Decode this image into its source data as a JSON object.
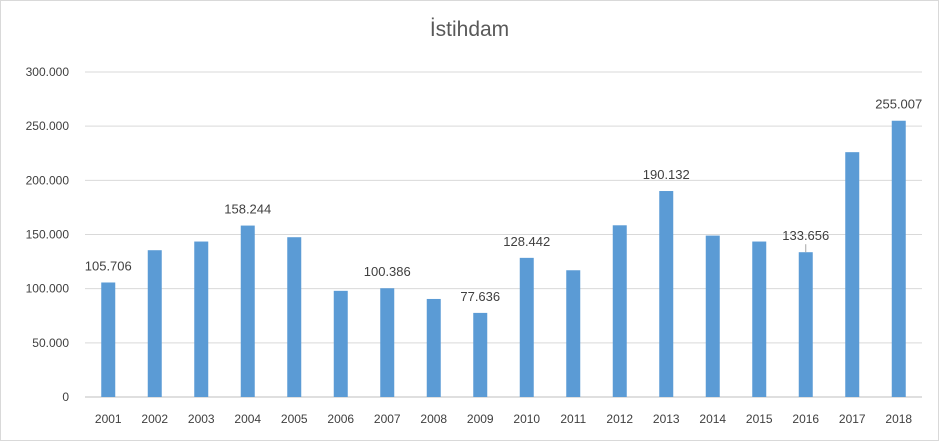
{
  "chart_data": {
    "type": "bar",
    "title": "İstihdam",
    "xlabel": "",
    "ylabel": "",
    "ylim": [
      0,
      300000
    ],
    "y_ticks": [
      "0",
      "50.000",
      "100.000",
      "150.000",
      "200.000",
      "250.000",
      "300.000"
    ],
    "grid": true,
    "legend": "none",
    "bar_color": "#5b9bd5",
    "categories": [
      "2001",
      "2002",
      "2003",
      "2004",
      "2005",
      "2006",
      "2007",
      "2008",
      "2009",
      "2010",
      "2011",
      "2012",
      "2013",
      "2014",
      "2015",
      "2016",
      "2017",
      "2018"
    ],
    "values": [
      105706,
      135500,
      143500,
      158244,
      147500,
      98000,
      100386,
      90500,
      77636,
      128442,
      117000,
      158500,
      190132,
      149000,
      143500,
      133656,
      226000,
      255007
    ],
    "data_labels": [
      {
        "index": 0,
        "text": "105.706"
      },
      {
        "index": 3,
        "text": "158.244"
      },
      {
        "index": 6,
        "text": "100.386"
      },
      {
        "index": 8,
        "text": "77.636"
      },
      {
        "index": 9,
        "text": "128.442"
      },
      {
        "index": 12,
        "text": "190.132"
      },
      {
        "index": 15,
        "text": "133.656"
      },
      {
        "index": 17,
        "text": "255.007"
      }
    ]
  }
}
